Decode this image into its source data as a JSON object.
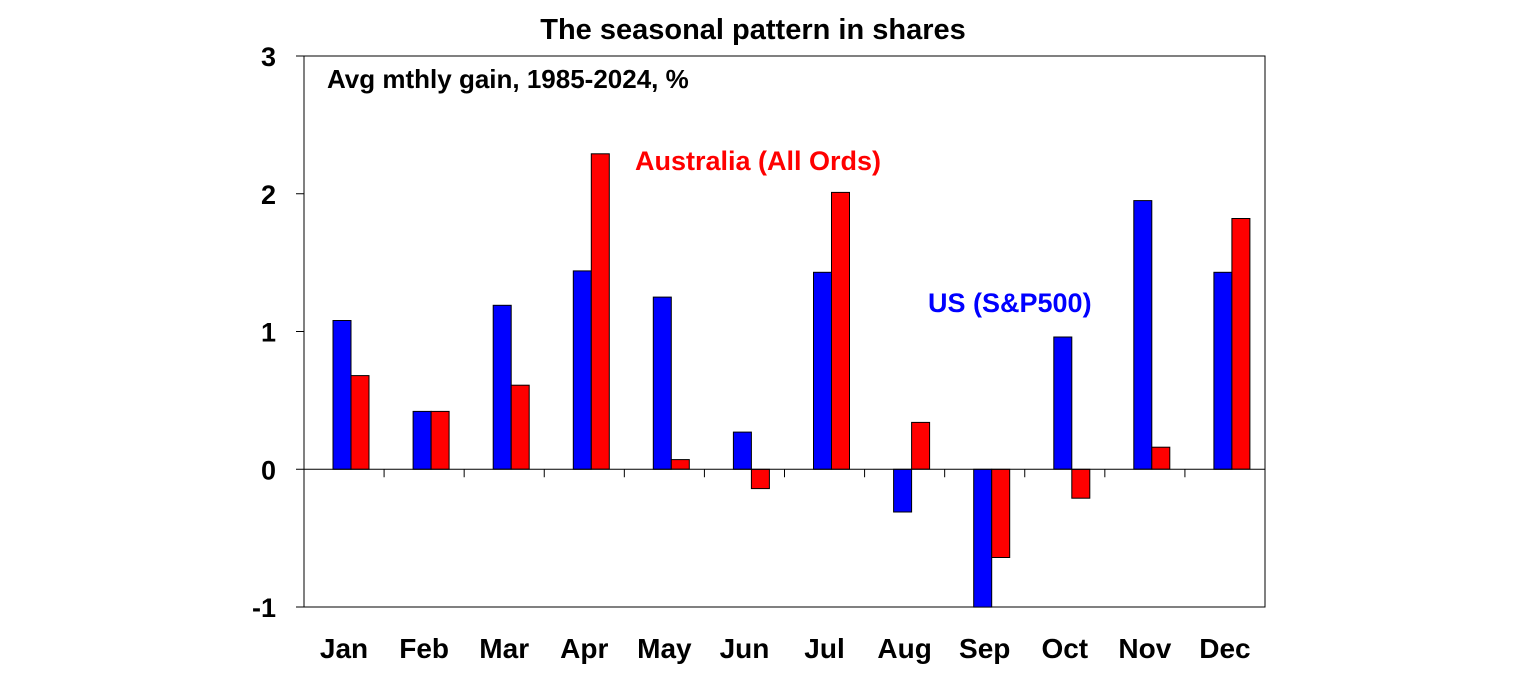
{
  "chart_data": {
    "type": "bar",
    "title": "The seasonal pattern in shares",
    "subtitle": "Avg mthly gain, 1985-2024, %",
    "xlabel": "",
    "ylabel": "",
    "ylim": [
      -1,
      3
    ],
    "yticks": [
      3,
      2,
      1,
      0,
      -1
    ],
    "grid": false,
    "categories": [
      "Jan",
      "Feb",
      "Mar",
      "Apr",
      "May",
      "Jun",
      "Jul",
      "Aug",
      "Sep",
      "Oct",
      "Nov",
      "Dec"
    ],
    "series": [
      {
        "name": "US (S&P500)",
        "color": "#0000ff",
        "values": [
          1.08,
          0.42,
          1.19,
          1.44,
          1.25,
          0.27,
          1.43,
          -0.31,
          -1.0,
          0.96,
          1.95,
          1.43
        ]
      },
      {
        "name": "Australia (All Ords)",
        "color": "#ff0000",
        "values": [
          0.68,
          0.42,
          0.61,
          2.29,
          0.07,
          -0.14,
          2.01,
          0.34,
          -0.64,
          -0.21,
          0.16,
          1.82
        ]
      }
    ],
    "annotations": {
      "us_label": "US (S&P500)",
      "au_label": "Australia (All Ords)"
    }
  }
}
